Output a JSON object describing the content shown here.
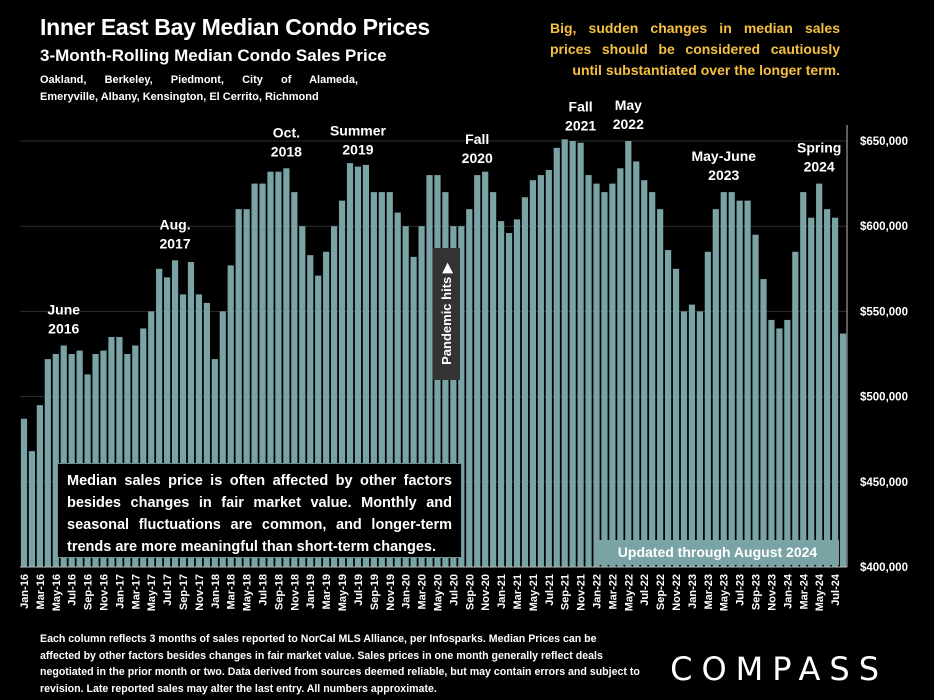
{
  "title": "Inner East Bay Median Condo Prices",
  "subtitle": "3-Month-Rolling Median Condo Sales Price",
  "cities_line1": "Oakland, Berkeley, Piedmont, City of Alameda,",
  "cities_line2": "Emeryville, Albany, Kensington, El Cerrito, Richmond",
  "caution": "Big, sudden changes in median sales prices should be considered cautiously until substantiated over the longer term.",
  "note_box": "Median sales price is often affected by other factors besides changes in fair market value. Monthly and seasonal fluctuations are common, and longer-term trends are more meaningful than short-term changes.",
  "updated_label": "Updated through August 2024",
  "pandemic_label": "Pandemic hits ▶",
  "footnote": "Each column reflects 3 months of sales reported to NorCal MLS Alliance, per Infosparks. Median Prices can be affected by other factors besides changes in fair market value. Sales prices in one month generally reflect deals negotiated in the prior month or two. Data derived from sources deemed reliable, but may contain errors and subject to revision. Late reported sales may alter the last entry. All numbers approximate.",
  "logo": "COMPASS",
  "colors": {
    "bar": "#7aa3a5",
    "caution": "#f5c041",
    "background": "#000000"
  },
  "chart_data": {
    "type": "bar",
    "ylim": [
      400000,
      660000
    ],
    "yticks": [
      400000,
      450000,
      500000,
      550000,
      600000,
      650000
    ],
    "ytick_labels": [
      "$400,000",
      "$450,000",
      "$500,000",
      "$550,000",
      "$600,000",
      "$650,000"
    ],
    "xtick_labels": [
      "Jan-16",
      "Mar-16",
      "May-16",
      "Jul-16",
      "Sep-16",
      "Nov-16",
      "Jan-17",
      "Mar-17",
      "May-17",
      "Jul-17",
      "Sep-17",
      "Nov-17",
      "Jan-18",
      "Mar-18",
      "May-18",
      "Jul-18",
      "Sep-18",
      "Nov-18",
      "Jan-19",
      "Mar-19",
      "May-19",
      "Jul-19",
      "Sep-19",
      "Nov-19",
      "Jan-20",
      "Mar-20",
      "May-20",
      "Jul-20",
      "Sep-20",
      "Nov-20",
      "Jan-21",
      "Mar-21",
      "May-21",
      "Jul-21",
      "Sep-21",
      "Nov-21",
      "Jan-22",
      "Mar-22",
      "May-22",
      "Jul-22",
      "Sep-22",
      "Nov-22",
      "Jan-23",
      "Mar-23",
      "May-23",
      "Jul-23",
      "Sep-23",
      "Nov-23",
      "Jan-24",
      "Mar-24",
      "May-24",
      "Jul-24"
    ],
    "values": [
      487000,
      468000,
      495000,
      522000,
      525000,
      530000,
      525000,
      527000,
      513000,
      525000,
      527000,
      535000,
      535000,
      525000,
      530000,
      540000,
      550000,
      575000,
      570000,
      580000,
      560000,
      579000,
      560000,
      555000,
      522000,
      550000,
      577000,
      610000,
      610000,
      625000,
      625000,
      632000,
      632000,
      634000,
      620000,
      600000,
      583000,
      571000,
      585000,
      600000,
      615000,
      637000,
      635000,
      636000,
      620000,
      620000,
      620000,
      608000,
      600000,
      582000,
      600000,
      630000,
      630000,
      620000,
      600000,
      600000,
      610000,
      630000,
      632000,
      620000,
      603000,
      596000,
      604000,
      617000,
      627000,
      630000,
      633000,
      646000,
      651000,
      650000,
      649000,
      630000,
      625000,
      620000,
      625000,
      634000,
      650000,
      638000,
      627000,
      620000,
      610000,
      586000,
      575000,
      550000,
      554000,
      550000,
      585000,
      610000,
      620000,
      620000,
      615000,
      615000,
      595000,
      569000,
      545000,
      540000,
      545000,
      585000,
      620000,
      605000,
      625000,
      610000,
      605000,
      537000
    ],
    "annotations": [
      {
        "lines": [
          "June",
          "2016"
        ],
        "index": 5
      },
      {
        "lines": [
          "Aug.",
          "2017"
        ],
        "index": 19
      },
      {
        "lines": [
          "Oct.",
          "2018"
        ],
        "index": 33
      },
      {
        "lines": [
          "Summer",
          "2019"
        ],
        "index": 42
      },
      {
        "lines": [
          "Fall",
          "2020"
        ],
        "index": 57
      },
      {
        "lines": [
          "Fall",
          "2021"
        ],
        "index": 70
      },
      {
        "lines": [
          "May",
          "2022"
        ],
        "index": 76
      },
      {
        "lines": [
          "May-June",
          "2023"
        ],
        "index": 88
      },
      {
        "lines": [
          "Spring",
          "2024"
        ],
        "index": 100
      }
    ]
  }
}
